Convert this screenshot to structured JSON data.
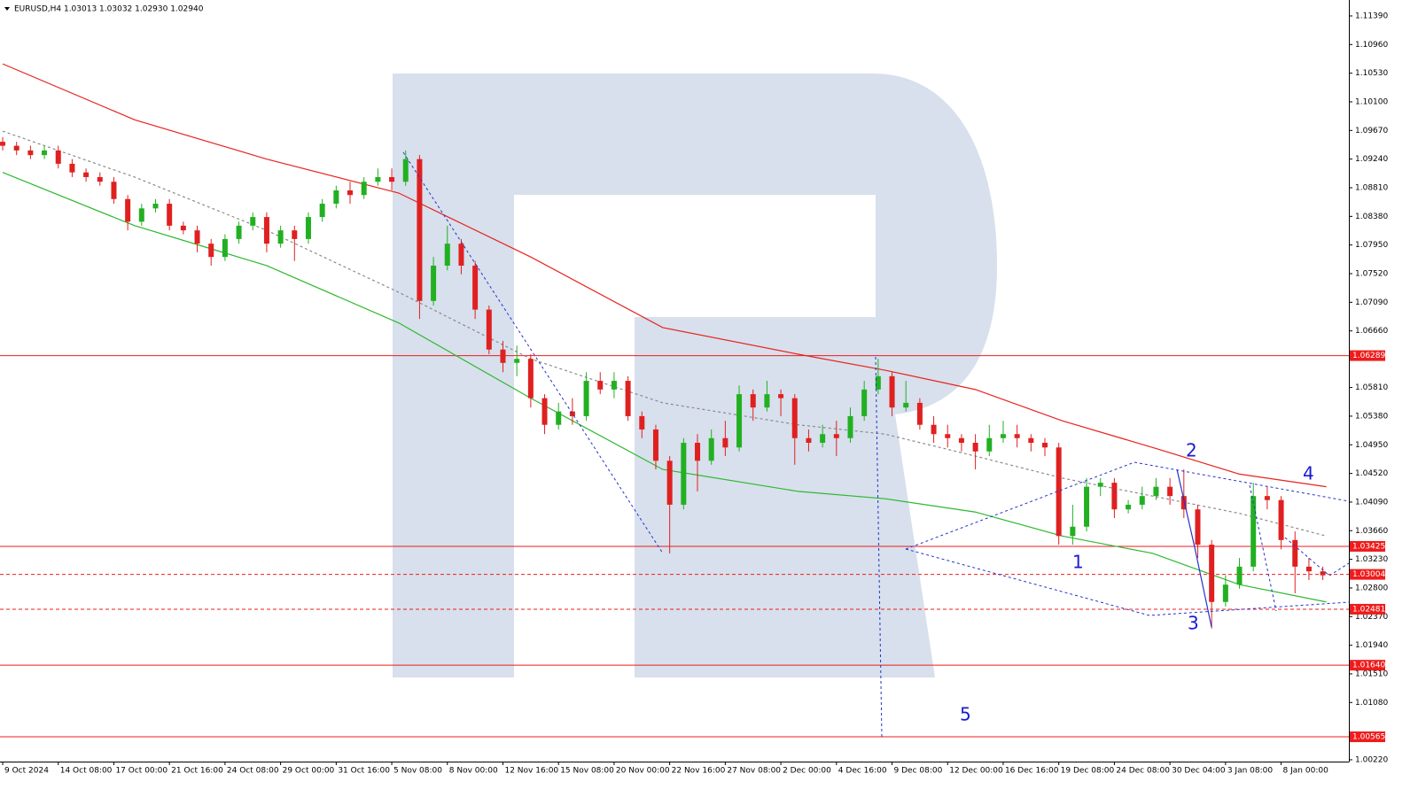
{
  "chart_data": {
    "type": "candlestick",
    "title": "EURUSD,H4  1.03013 1.03032 1.02930 1.02940",
    "up_color": "#22b022",
    "down_color": "#e02020",
    "xlim": [
      -0.77,
      387.5
    ],
    "xticks": [
      {
        "value": 0,
        "label": "9 Oct 2024"
      },
      {
        "value": 16,
        "label": "14 Oct 08:00"
      },
      {
        "value": 32,
        "label": "17 Oct 00:00"
      },
      {
        "value": 48,
        "label": "21 Oct 16:00"
      },
      {
        "value": 64,
        "label": "24 Oct 08:00"
      },
      {
        "value": 80,
        "label": "29 Oct 00:00"
      },
      {
        "value": 96,
        "label": "31 Oct 16:00"
      },
      {
        "value": 112,
        "label": "5 Nov 08:00"
      },
      {
        "value": 128,
        "label": "8 Nov 00:00"
      },
      {
        "value": 144,
        "label": "12 Nov 16:00"
      },
      {
        "value": 160,
        "label": "15 Nov 08:00"
      },
      {
        "value": 176,
        "label": "20 Nov 00:00"
      },
      {
        "value": 192,
        "label": "22 Nov 16:00"
      },
      {
        "value": 208,
        "label": "27 Nov 08:00"
      },
      {
        "value": 224,
        "label": "2 Dec 00:00"
      },
      {
        "value": 240,
        "label": "4 Dec 16:00"
      },
      {
        "value": 256,
        "label": "9 Dec 08:00"
      },
      {
        "value": 272,
        "label": "12 Dec 00:00"
      },
      {
        "value": 288,
        "label": "16 Dec 16:00"
      },
      {
        "value": 304,
        "label": "19 Dec 08:00"
      },
      {
        "value": 320,
        "label": "24 Dec 08:00"
      },
      {
        "value": 336,
        "label": "30 Dec 04:00"
      },
      {
        "value": 352,
        "label": "3 Jan 08:00"
      },
      {
        "value": 368,
        "label": "8 Jan 00:00"
      }
    ],
    "ylim": [
      1.00193,
      1.11629
    ],
    "yticks": [
      {
        "value": 1.1139,
        "label": "1.11390"
      },
      {
        "value": 1.1096,
        "label": "1.10960"
      },
      {
        "value": 1.1053,
        "label": "1.10530"
      },
      {
        "value": 1.101,
        "label": "1.10100"
      },
      {
        "value": 1.0967,
        "label": "1.09670"
      },
      {
        "value": 1.0924,
        "label": "1.09240"
      },
      {
        "value": 1.0881,
        "label": "1.08810"
      },
      {
        "value": 1.0838,
        "label": "1.08380"
      },
      {
        "value": 1.0795,
        "label": "1.07950"
      },
      {
        "value": 1.0752,
        "label": "1.07520"
      },
      {
        "value": 1.0709,
        "label": "1.07090"
      },
      {
        "value": 1.0666,
        "label": "1.06660"
      },
      {
        "value": 1.0581,
        "label": "1.05810"
      },
      {
        "value": 1.0538,
        "label": "1.05380"
      },
      {
        "value": 1.0495,
        "label": "1.04950"
      },
      {
        "value": 1.0452,
        "label": "1.04520"
      },
      {
        "value": 1.0409,
        "label": "1.04090"
      },
      {
        "value": 1.0366,
        "label": "1.03660"
      },
      {
        "value": 1.0323,
        "label": "1.03230"
      },
      {
        "value": 1.028,
        "label": "1.02800"
      },
      {
        "value": 1.0237,
        "label": "1.02370"
      },
      {
        "value": 1.0194,
        "label": "1.01940"
      },
      {
        "value": 1.0151,
        "label": "1.01510"
      },
      {
        "value": 1.0108,
        "label": "1.01080"
      },
      {
        "value": 1.0022,
        "label": "1.00220"
      }
    ],
    "x": [
      0,
      4,
      8,
      12,
      16,
      20,
      24,
      28,
      32,
      36,
      40,
      44,
      48,
      52,
      56,
      60,
      64,
      68,
      72,
      76,
      80,
      84,
      88,
      92,
      96,
      100,
      104,
      108,
      112,
      116,
      120,
      124,
      128,
      132,
      136,
      140,
      144,
      148,
      152,
      156,
      160,
      164,
      168,
      172,
      176,
      180,
      184,
      188,
      192,
      196,
      200,
      204,
      208,
      212,
      216,
      220,
      224,
      228,
      232,
      236,
      240,
      244,
      248,
      252,
      256,
      260,
      264,
      268,
      272,
      276,
      280,
      284,
      288,
      292,
      296,
      300,
      304,
      308,
      312,
      316,
      320,
      324,
      328,
      332,
      336,
      340,
      344,
      348,
      352,
      356,
      360,
      364,
      368,
      372,
      376,
      380
    ],
    "open": [
      1.095,
      1.0944,
      1.0937,
      1.093,
      1.0937,
      1.0917,
      1.0904,
      1.0897,
      1.089,
      1.0864,
      1.083,
      1.085,
      1.0857,
      1.0824,
      1.0817,
      1.0797,
      1.0777,
      1.0804,
      1.0824,
      1.0837,
      1.0797,
      1.0817,
      1.0804,
      1.0837,
      1.0857,
      1.0877,
      1.087,
      1.089,
      1.0897,
      1.089,
      1.0924,
      1.0711,
      1.0764,
      1.0797,
      1.0764,
      1.0698,
      1.0638,
      1.0618,
      1.0624,
      1.0565,
      1.0525,
      1.0545,
      1.0538,
      1.0591,
      1.0578,
      1.0591,
      1.0538,
      1.0518,
      1.0471,
      1.0405,
      1.0498,
      1.0471,
      1.0505,
      1.0491,
      1.0571,
      1.0551,
      1.0571,
      1.0565,
      1.0505,
      1.0498,
      1.0511,
      1.0505,
      1.0538,
      1.0578,
      1.0598,
      1.0551,
      1.0558,
      1.0525,
      1.0511,
      1.0505,
      1.0498,
      1.0485,
      1.0505,
      1.0511,
      1.0505,
      1.0498,
      1.0491,
      1.0358,
      1.0372,
      1.0432,
      1.0438,
      1.0398,
      1.0405,
      1.0418,
      1.0432,
      1.0418,
      1.0398,
      1.0345,
      1.0259,
      1.0285,
      1.0312,
      1.0418,
      1.0412,
      1.0352,
      1.0312,
      1.0305
    ],
    "high": [
      1.0957,
      1.095,
      1.0944,
      1.0944,
      1.0944,
      1.0924,
      1.091,
      1.0904,
      1.0897,
      1.087,
      1.0857,
      1.0864,
      1.0864,
      1.083,
      1.0824,
      1.0804,
      1.0811,
      1.083,
      1.0844,
      1.0844,
      1.0824,
      1.0824,
      1.0844,
      1.0864,
      1.0884,
      1.089,
      1.0897,
      1.091,
      1.091,
      1.0937,
      1.093,
      1.0777,
      1.0824,
      1.0804,
      1.0771,
      1.0704,
      1.0651,
      1.0644,
      1.0631,
      1.0571,
      1.0558,
      1.0565,
      1.0604,
      1.0604,
      1.0604,
      1.0598,
      1.0545,
      1.0525,
      1.0478,
      1.0505,
      1.0511,
      1.0518,
      1.0531,
      1.0584,
      1.0578,
      1.0591,
      1.0578,
      1.0571,
      1.0518,
      1.0525,
      1.0531,
      1.0551,
      1.0591,
      1.0624,
      1.0604,
      1.0591,
      1.0565,
      1.0538,
      1.0525,
      1.0511,
      1.0511,
      1.0525,
      1.0531,
      1.0525,
      1.0511,
      1.0505,
      1.0498,
      1.0405,
      1.0445,
      1.0445,
      1.0445,
      1.0412,
      1.0432,
      1.0445,
      1.0445,
      1.0458,
      1.0405,
      1.0352,
      1.0299,
      1.0325,
      1.0438,
      1.0432,
      1.0418,
      1.0365,
      1.0325,
      1.0312
    ],
    "low": [
      1.0937,
      1.093,
      1.0924,
      1.0924,
      1.091,
      1.0897,
      1.089,
      1.0884,
      1.0857,
      1.0817,
      1.0824,
      1.0844,
      1.0817,
      1.0811,
      1.0784,
      1.0764,
      1.0771,
      1.0797,
      1.0817,
      1.0784,
      1.0791,
      1.0771,
      1.0797,
      1.083,
      1.085,
      1.0857,
      1.0864,
      1.0884,
      1.0877,
      1.0884,
      1.0684,
      1.0704,
      1.0757,
      1.0751,
      1.0684,
      1.0631,
      1.0604,
      1.0598,
      1.0551,
      1.0511,
      1.0518,
      1.0525,
      1.0531,
      1.0571,
      1.0565,
      1.0531,
      1.0505,
      1.0458,
      1.0332,
      1.0398,
      1.0425,
      1.0465,
      1.0478,
      1.0485,
      1.0531,
      1.0545,
      1.0538,
      1.0465,
      1.0485,
      1.0491,
      1.0478,
      1.0498,
      1.0531,
      1.0571,
      1.0538,
      1.0545,
      1.0518,
      1.0498,
      1.0491,
      1.0485,
      1.0458,
      1.0478,
      1.0498,
      1.0491,
      1.0485,
      1.0478,
      1.0345,
      1.0345,
      1.0365,
      1.0418,
      1.0385,
      1.0392,
      1.0398,
      1.0412,
      1.0405,
      1.0385,
      1.0325,
      1.0219,
      1.0252,
      1.0279,
      1.0305,
      1.0398,
      1.0338,
      1.0272,
      1.0292,
      1.0292
    ],
    "close": [
      1.0944,
      1.0937,
      1.093,
      1.0937,
      1.0917,
      1.0904,
      1.0897,
      1.089,
      1.0864,
      1.083,
      1.085,
      1.0857,
      1.0824,
      1.0817,
      1.0797,
      1.0777,
      1.0804,
      1.0824,
      1.0837,
      1.0797,
      1.0817,
      1.0804,
      1.0837,
      1.0857,
      1.0877,
      1.087,
      1.089,
      1.0897,
      1.089,
      1.0924,
      1.0711,
      1.0764,
      1.0797,
      1.0764,
      1.0698,
      1.0638,
      1.0618,
      1.0624,
      1.0565,
      1.0525,
      1.0545,
      1.0538,
      1.0591,
      1.0578,
      1.0591,
      1.0538,
      1.0518,
      1.0471,
      1.0405,
      1.0498,
      1.0471,
      1.0505,
      1.0491,
      1.0571,
      1.0551,
      1.0571,
      1.0565,
      1.0505,
      1.0498,
      1.0511,
      1.0505,
      1.0538,
      1.0578,
      1.0598,
      1.0551,
      1.0558,
      1.0525,
      1.0511,
      1.0505,
      1.0498,
      1.0485,
      1.0505,
      1.0511,
      1.0505,
      1.0498,
      1.0491,
      1.0358,
      1.0372,
      1.0432,
      1.0438,
      1.0398,
      1.0405,
      1.0418,
      1.0432,
      1.0418,
      1.0398,
      1.0345,
      1.0259,
      1.0285,
      1.0312,
      1.0418,
      1.0412,
      1.0352,
      1.0312,
      1.0305,
      1.0299
    ],
    "series": [
      {
        "color": "#e8231e",
        "style": "solid",
        "x": [
          0,
          38,
          76,
          114,
          152,
          190,
          229,
          254,
          280,
          305,
          331,
          356,
          381
        ],
        "values": [
          1.1067,
          1.0983,
          1.0924,
          1.0873,
          1.0777,
          1.0671,
          1.0631,
          1.0607,
          1.0578,
          1.0531,
          1.0491,
          1.0451,
          1.0432
        ]
      },
      {
        "color": "#2fb82f",
        "style": "solid",
        "x": [
          0,
          38,
          76,
          114,
          152,
          190,
          229,
          254,
          280,
          305,
          331,
          356,
          381
        ],
        "values": [
          1.0904,
          1.0824,
          1.0764,
          1.0678,
          1.0565,
          1.0458,
          1.0425,
          1.0414,
          1.0394,
          1.0358,
          1.0332,
          1.0285,
          1.0259
        ]
      },
      {
        "color": "#8a8a8a",
        "style": "dashed",
        "x": [
          0,
          38,
          76,
          114,
          152,
          190,
          229,
          254,
          280,
          305,
          331,
          356,
          381
        ],
        "values": [
          1.0966,
          1.0897,
          1.0817,
          1.0724,
          1.0624,
          1.0558,
          1.0525,
          1.0511,
          1.0478,
          1.0445,
          1.0418,
          1.0392,
          1.0358
        ]
      }
    ],
    "levels": [
      {
        "value": 1.06289,
        "style": "solid"
      },
      {
        "value": 1.03425,
        "style": "solid"
      },
      {
        "value": 1.03004,
        "style": "dashed"
      },
      {
        "value": 1.02481,
        "style": "dashed"
      },
      {
        "value": 1.0164,
        "label": "1.01640",
        "style": "solid"
      },
      {
        "value": 1.00565,
        "style": "solid"
      }
    ],
    "level_color": "#ee1c1c",
    "annotations": [
      "1",
      "2",
      "3",
      "4",
      "5"
    ]
  }
}
